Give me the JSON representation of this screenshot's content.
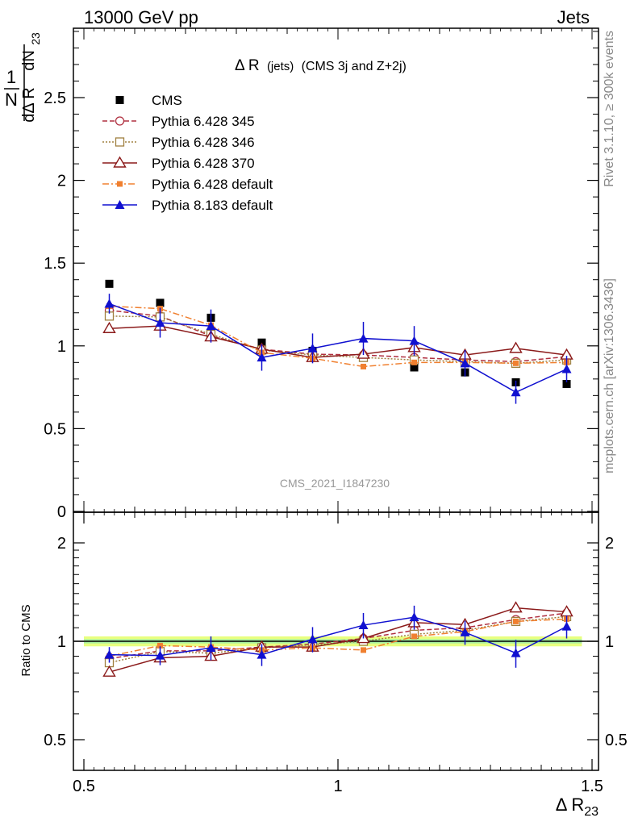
{
  "header": {
    "left": "13000 GeV pp",
    "right": "Jets"
  },
  "side_labels": {
    "rivet": "Rivet 3.1.10, ≥ 300k events",
    "mcplots": "mcplots.cern.ch [arXiv:1306.3436]"
  },
  "colors": {
    "cms": "#000000",
    "p345": "#b03040",
    "p346": "#a08040",
    "p370": "#8b1a1a",
    "p6def": "#f08030",
    "p8def": "#1010d0",
    "band_outer": "#e8ff80",
    "band_inner": "#a8f0a0"
  },
  "chart_data": [
    {
      "type": "scatter",
      "panel": "main",
      "title_main": "Δ R",
      "title_small": "(jets)",
      "title_rest": "(CMS 3j and Z+2j)",
      "ylabel_num": "1",
      "ylabel_den": "N",
      "ylabel_frac_num": "dN",
      "ylabel_frac_den": "dΔ R",
      "ylabel_sub": "23",
      "watermark": "CMS_2021_I1847230",
      "xlim": [
        0.5,
        1.5
      ],
      "ylim": [
        0,
        2.95
      ],
      "yticks": [
        "0",
        "0.5",
        "1",
        "1.5",
        "2",
        "2.5"
      ],
      "ytick_values": [
        0,
        0.5,
        1,
        1.5,
        2,
        2.5
      ],
      "x": [
        0.55,
        0.65,
        0.75,
        0.85,
        0.95,
        1.05,
        1.15,
        1.25,
        1.35,
        1.45
      ],
      "series": [
        {
          "name": "CMS",
          "key": "cms",
          "values": [
            1.375,
            1.26,
            1.17,
            1.02,
            0.97,
            0.93,
            0.87,
            0.84,
            0.78,
            0.77
          ]
        },
        {
          "name": "Pythia 6.428 345",
          "key": "p345",
          "values": [
            1.215,
            1.18,
            1.06,
            0.98,
            0.95,
            0.945,
            0.93,
            0.915,
            0.905,
            0.935
          ]
        },
        {
          "name": "Pythia 6.428 346",
          "key": "p346",
          "values": [
            1.18,
            1.175,
            1.07,
            0.975,
            0.945,
            0.93,
            0.915,
            0.905,
            0.895,
            0.915
          ]
        },
        {
          "name": "Pythia 6.428 370",
          "key": "p370",
          "values": [
            1.105,
            1.12,
            1.055,
            0.98,
            0.93,
            0.95,
            0.99,
            0.945,
            0.985,
            0.945
          ]
        },
        {
          "name": "Pythia 6.428 default",
          "key": "p6def",
          "values": [
            1.24,
            1.225,
            1.125,
            0.96,
            0.925,
            0.875,
            0.9,
            0.9,
            0.895,
            0.9
          ]
        },
        {
          "name": "Pythia 8.183 default",
          "key": "p8def",
          "values": [
            1.255,
            1.14,
            1.12,
            0.93,
            0.985,
            1.045,
            1.03,
            0.895,
            0.72,
            0.86
          ]
        }
      ],
      "p8_errors": [
        0.06,
        0.09,
        0.1,
        0.08,
        0.09,
        0.1,
        0.09,
        0.08,
        0.07,
        0.08
      ]
    },
    {
      "type": "scatter",
      "panel": "ratio",
      "ylabel": "Ratio to CMS",
      "xlabel_main": "Δ R",
      "xlabel_sub": "23",
      "xlim": [
        0.5,
        1.5
      ],
      "ylim": [
        0.37,
        2.3
      ],
      "xticks": [
        "0.5",
        "1",
        "1.5"
      ],
      "xtick_values": [
        0.5,
        1,
        1.5
      ],
      "yticks": [
        "0.5",
        "1",
        "2"
      ],
      "ytick_values": [
        0.5,
        1,
        2
      ],
      "x": [
        0.55,
        0.65,
        0.75,
        0.85,
        0.95,
        1.05,
        1.15,
        1.25,
        1.35,
        1.45
      ],
      "series": [
        {
          "name": "Pythia 6.428 345",
          "key": "p345",
          "values": [
            0.885,
            0.935,
            0.935,
            0.96,
            0.98,
            1.02,
            1.08,
            1.1,
            1.165,
            1.22
          ]
        },
        {
          "name": "Pythia 6.428 346",
          "key": "p346",
          "values": [
            0.86,
            0.93,
            0.92,
            0.955,
            0.975,
            1.0,
            1.05,
            1.08,
            1.15,
            1.19
          ]
        },
        {
          "name": "Pythia 6.428 370",
          "key": "p370",
          "values": [
            0.805,
            0.89,
            0.9,
            0.96,
            0.96,
            1.02,
            1.14,
            1.125,
            1.265,
            1.23
          ]
        },
        {
          "name": "Pythia 6.428 default",
          "key": "p6def",
          "values": [
            0.9,
            0.97,
            0.96,
            0.94,
            0.955,
            0.94,
            1.035,
            1.07,
            1.15,
            1.17
          ]
        },
        {
          "name": "Pythia 8.183 default",
          "key": "p8def",
          "values": [
            0.91,
            0.905,
            0.955,
            0.91,
            1.015,
            1.12,
            1.185,
            1.065,
            0.92,
            1.11
          ]
        }
      ],
      "p8_errors": [
        0.05,
        0.06,
        0.08,
        0.07,
        0.09,
        0.1,
        0.1,
        0.09,
        0.09,
        0.09
      ]
    }
  ]
}
